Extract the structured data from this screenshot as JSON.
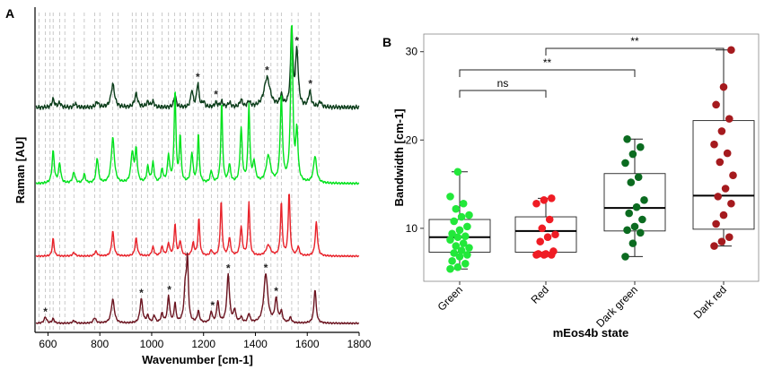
{
  "panels": {
    "a": "A",
    "b": "B"
  },
  "chart_data": [
    {
      "type": "line",
      "panel": "A",
      "xlabel": "Wavenumber [cm-1]",
      "ylabel": "Raman [AU]",
      "xlim": [
        550,
        1800
      ],
      "xticks": [
        600,
        800,
        1000,
        1200,
        1400,
        1600,
        1800
      ],
      "reference_lines": [
        565,
        590,
        608,
        620,
        645,
        665,
        700,
        740,
        780,
        800,
        850,
        870,
        925,
        940,
        960,
        985,
        1005,
        1040,
        1065,
        1088,
        1110,
        1130,
        1160,
        1180,
        1200,
        1230,
        1255,
        1270,
        1300,
        1320,
        1345,
        1375,
        1395,
        1435,
        1460,
        1485,
        1500,
        1540,
        1565,
        1615,
        1645
      ],
      "series": [
        {
          "name": "Dark green",
          "color": "#0b3d1a",
          "baseline": 120,
          "noise": 1.6,
          "peaks": [
            [
              620,
              9,
              6
            ],
            [
              645,
              5,
              6
            ],
            [
              705,
              4,
              6
            ],
            [
              790,
              6,
              6
            ],
            [
              850,
              26,
              8
            ],
            [
              940,
              15,
              7
            ],
            [
              985,
              6,
              6
            ],
            [
              1005,
              6,
              6
            ],
            [
              1090,
              14,
              5
            ],
            [
              1155,
              19,
              5
            ],
            [
              1178,
              27,
              5
            ],
            [
              1200,
              6,
              5
            ],
            [
              1248,
              5,
              6
            ],
            [
              1270,
              6,
              6
            ],
            [
              1300,
              5,
              6
            ],
            [
              1345,
              8,
              6
            ],
            [
              1375,
              6,
              6
            ],
            [
              1445,
              33,
              14
            ],
            [
              1500,
              12,
              6
            ],
            [
              1540,
              88,
              5
            ],
            [
              1560,
              62,
              6
            ],
            [
              1610,
              17,
              6
            ],
            [
              1650,
              6,
              6
            ]
          ],
          "stars": [
            1178,
            1248,
            1445,
            1560,
            1612
          ]
        },
        {
          "name": "Green",
          "color": "#00e21c",
          "baseline": 205,
          "noise": 0.8,
          "peaks": [
            [
              620,
              36,
              5
            ],
            [
              645,
              22,
              5
            ],
            [
              700,
              12,
              6
            ],
            [
              740,
              10,
              5
            ],
            [
              790,
              28,
              5
            ],
            [
              850,
              51,
              7
            ],
            [
              925,
              33,
              6
            ],
            [
              940,
              36,
              5
            ],
            [
              985,
              18,
              5
            ],
            [
              1005,
              22,
              5
            ],
            [
              1040,
              14,
              5
            ],
            [
              1065,
              30,
              5
            ],
            [
              1090,
              104,
              4
            ],
            [
              1110,
              52,
              4
            ],
            [
              1155,
              33,
              5
            ],
            [
              1180,
              55,
              4
            ],
            [
              1230,
              13,
              5
            ],
            [
              1270,
              90,
              4
            ],
            [
              1300,
              20,
              5
            ],
            [
              1345,
              60,
              5
            ],
            [
              1375,
              86,
              4
            ],
            [
              1395,
              22,
              6
            ],
            [
              1450,
              30,
              10
            ],
            [
              1500,
              96,
              5
            ],
            [
              1540,
              178,
              5
            ],
            [
              1560,
              55,
              5
            ],
            [
              1630,
              30,
              7
            ]
          ],
          "stars": []
        },
        {
          "name": "Red",
          "color": "#e8222a",
          "baseline": 286,
          "noise": 0.6,
          "peaks": [
            [
              620,
              20,
              4
            ],
            [
              700,
              4,
              6
            ],
            [
              785,
              5,
              6
            ],
            [
              850,
              28,
              5
            ],
            [
              940,
              20,
              5
            ],
            [
              1005,
              10,
              5
            ],
            [
              1040,
              10,
              5
            ],
            [
              1065,
              14,
              5
            ],
            [
              1090,
              36,
              4
            ],
            [
              1110,
              16,
              5
            ],
            [
              1160,
              14,
              5
            ],
            [
              1182,
              42,
              4
            ],
            [
              1230,
              6,
              5
            ],
            [
              1268,
              62,
              4
            ],
            [
              1300,
              20,
              5
            ],
            [
              1345,
              32,
              5
            ],
            [
              1375,
              60,
              4
            ],
            [
              1450,
              12,
              10
            ],
            [
              1500,
              60,
              4
            ],
            [
              1530,
              72,
              4
            ],
            [
              1565,
              10,
              5
            ],
            [
              1635,
              38,
              5
            ]
          ],
          "stars": []
        },
        {
          "name": "Dark red",
          "color": "#6b1420",
          "baseline": 361,
          "noise": 0.6,
          "peaks": [
            [
              590,
              7,
              6
            ],
            [
              620,
              5,
              5
            ],
            [
              700,
              3,
              6
            ],
            [
              780,
              6,
              6
            ],
            [
              850,
              27,
              7
            ],
            [
              960,
              27,
              6
            ],
            [
              985,
              8,
              5
            ],
            [
              1010,
              8,
              5
            ],
            [
              1040,
              10,
              5
            ],
            [
              1065,
              30,
              5
            ],
            [
              1090,
              22,
              4
            ],
            [
              1130,
              40,
              6
            ],
            [
              1138,
              64,
              4
            ],
            [
              1180,
              13,
              5
            ],
            [
              1230,
              12,
              5
            ],
            [
              1255,
              24,
              5
            ],
            [
              1295,
              54,
              6
            ],
            [
              1320,
              14,
              5
            ],
            [
              1345,
              6,
              5
            ],
            [
              1375,
              10,
              5
            ],
            [
              1440,
              55,
              9
            ],
            [
              1480,
              26,
              6
            ],
            [
              1500,
              12,
              5
            ],
            [
              1535,
              6,
              5
            ],
            [
              1630,
              38,
              5
            ]
          ],
          "stars": [
            590,
            960,
            1068,
            1235,
            1295,
            1440,
            1480
          ]
        }
      ]
    },
    {
      "type": "box",
      "panel": "B",
      "xlabel": "mEos4b state",
      "ylabel": "Bandwidth [cm-1]",
      "ylim": [
        4,
        32
      ],
      "yticks": [
        10,
        20,
        30
      ],
      "categories": [
        "Green",
        "Red",
        "Dark green",
        "Dark red"
      ],
      "boxes": [
        {
          "q1": 7.3,
          "median": 9.0,
          "q3": 11.0,
          "min": 5.4,
          "max": 16.4,
          "color": "#22e83a",
          "points": [
            5.4,
            5.6,
            6.0,
            6.3,
            6.8,
            7.0,
            7.2,
            7.5,
            7.8,
            8.0,
            8.3,
            8.7,
            9.0,
            9.1,
            9.4,
            9.8,
            10.2,
            10.8,
            11.3,
            11.5,
            12.2,
            12.8,
            13.6,
            16.4
          ]
        },
        {
          "q1": 7.3,
          "median": 9.7,
          "q3": 11.3,
          "min": 7.0,
          "max": 13.4,
          "color": "#ef1c24",
          "points": [
            7.0,
            7.0,
            7.0,
            7.1,
            7.1,
            7.4,
            8.5,
            9.0,
            9.3,
            10.0,
            11.0,
            12.8,
            13.2,
            13.4
          ]
        },
        {
          "q1": 9.7,
          "median": 12.3,
          "q3": 16.2,
          "min": 6.8,
          "max": 20.1,
          "color": "#0b6b20",
          "points": [
            6.8,
            8.3,
            9.5,
            9.8,
            10.2,
            11.0,
            11.7,
            12.4,
            13.2,
            15.2,
            15.8,
            17.4,
            18.4,
            19.2,
            20.1
          ]
        },
        {
          "q1": 9.9,
          "median": 13.7,
          "q3": 22.2,
          "min": 8.0,
          "max": 30.2,
          "color": "#a51a1e",
          "points": [
            8.0,
            8.5,
            9.0,
            10.5,
            11.5,
            12.8,
            13.6,
            14.5,
            16.0,
            17.5,
            18.5,
            19.5,
            21.0,
            22.4,
            24.0,
            26.0,
            30.2
          ]
        }
      ],
      "significance": [
        {
          "from": "Green",
          "to": "Red",
          "label": "ns"
        },
        {
          "from": "Green",
          "to": "Dark green",
          "label": "**"
        },
        {
          "from": "Red",
          "to": "Dark red",
          "label": "**"
        }
      ]
    }
  ]
}
